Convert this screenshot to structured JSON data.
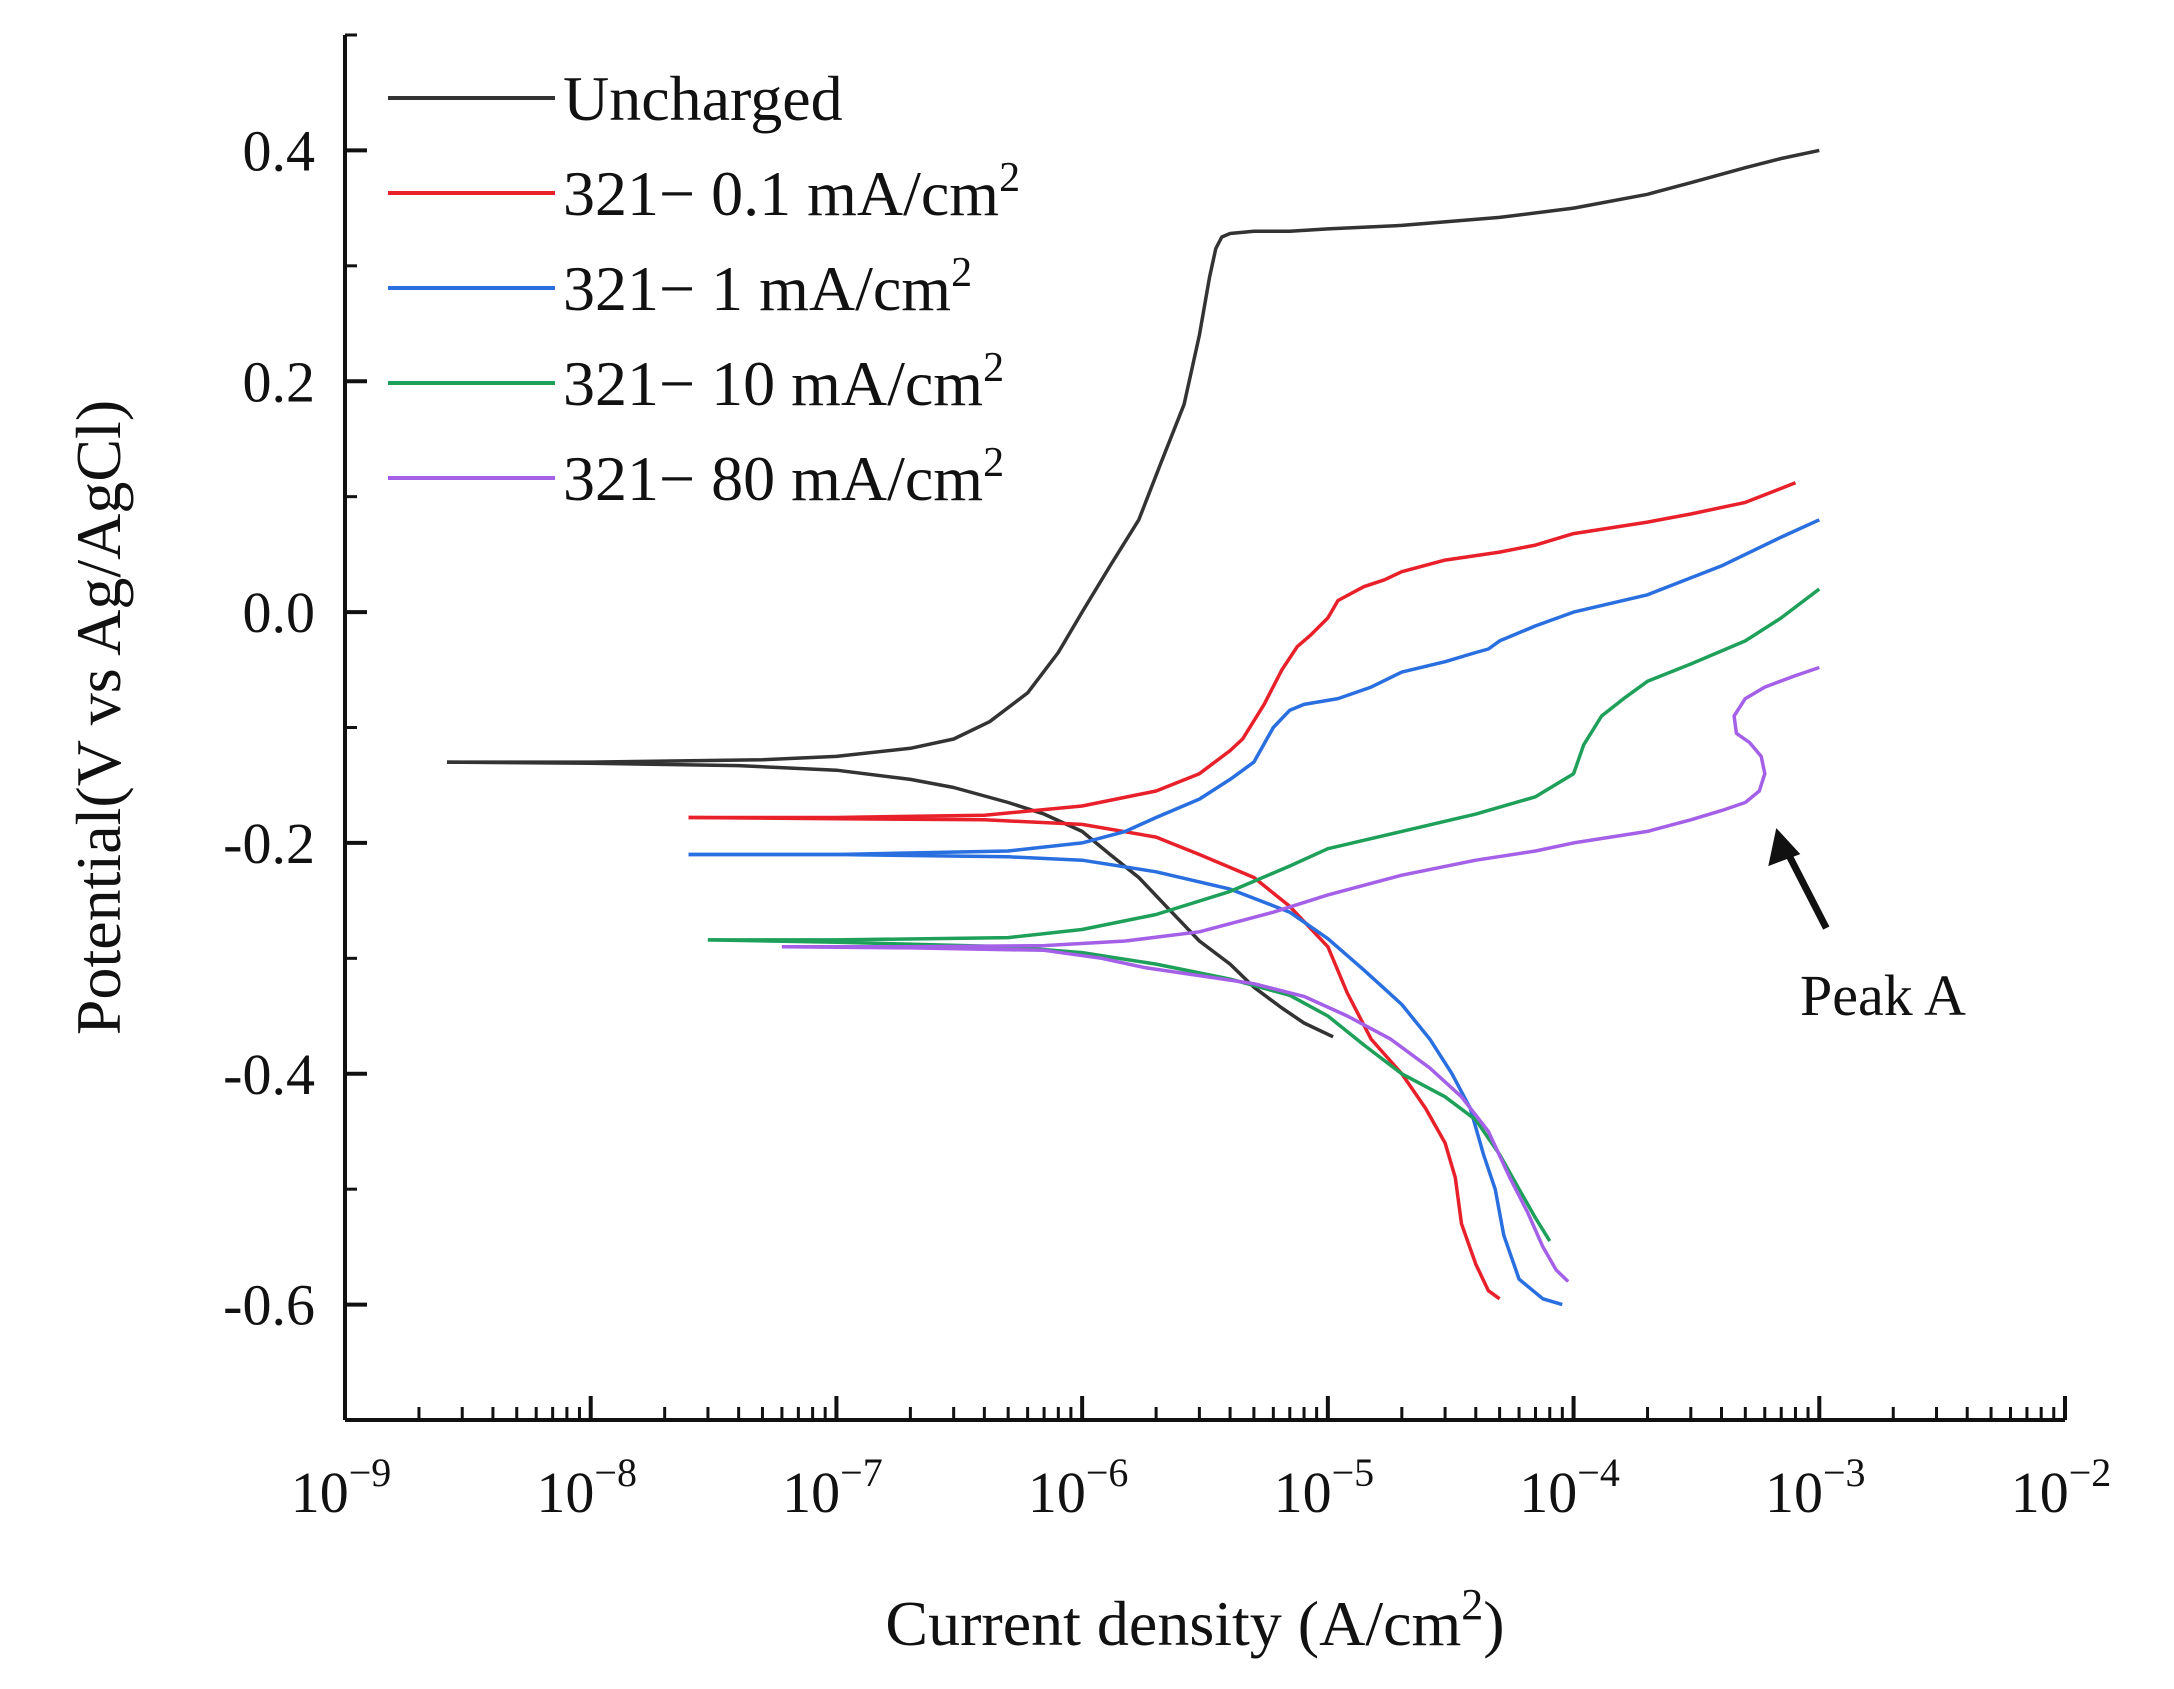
{
  "chart_data": {
    "type": "line",
    "xscale": "log",
    "xlabel": "Current density (A/cm",
    "xlabel_sup": "2",
    "xlabel_suffix": ")",
    "ylabel": "Potential(V vs Ag/AgCl)",
    "xlim": [
      1e-09,
      0.01
    ],
    "ylim": [
      -0.7,
      0.5
    ],
    "y_ticks": [
      "0.4",
      "0.2",
      "0.0",
      "-0.2",
      "-0.4",
      "-0.6"
    ],
    "y_tick_values": [
      0.4,
      0.2,
      0.0,
      -0.2,
      -0.4,
      -0.6
    ],
    "x_ticks": [
      {
        "base": "10",
        "exp": "−9",
        "value": 1e-09
      },
      {
        "base": "10",
        "exp": "−8",
        "value": 1e-08
      },
      {
        "base": "10",
        "exp": "−7",
        "value": 1e-07
      },
      {
        "base": "10",
        "exp": "−6",
        "value": 1e-06
      },
      {
        "base": "10",
        "exp": "−5",
        "value": 1e-05
      },
      {
        "base": "10",
        "exp": "−4",
        "value": 0.0001
      },
      {
        "base": "10",
        "exp": "−3",
        "value": 0.001
      },
      {
        "base": "10",
        "exp": "−2",
        "value": 0.01
      }
    ],
    "legend": "top-left",
    "series": [
      {
        "name": "Uncharged",
        "label_main": "Uncharged",
        "label_sup": "",
        "color": "#333333",
        "x": [
          2.6e-09,
          1e-08,
          5e-08,
          1e-07,
          2e-07,
          3e-07,
          4.2e-07,
          6e-07,
          8e-07,
          1e-06,
          1.3e-06,
          1.7e-06,
          2.1e-06,
          2.6e-06,
          3e-06,
          3.3e-06,
          3.5e-06,
          3.7e-06,
          4e-06,
          5e-06,
          7e-06,
          1e-05,
          2e-05,
          5e-05,
          0.0001,
          0.0002,
          0.0003,
          0.0005,
          0.0007,
          0.001
        ],
        "y": [
          -0.13,
          -0.13,
          -0.128,
          -0.125,
          -0.118,
          -0.11,
          -0.095,
          -0.07,
          -0.035,
          0.0,
          0.04,
          0.08,
          0.13,
          0.18,
          0.24,
          0.29,
          0.315,
          0.325,
          0.328,
          0.33,
          0.33,
          0.332,
          0.335,
          0.342,
          0.35,
          0.362,
          0.372,
          0.385,
          0.393,
          0.4
        ],
        "cx": [
          2.6e-09,
          1e-08,
          4e-08,
          1e-07,
          2e-07,
          3e-07,
          5e-07,
          7e-07,
          1e-06,
          1.3e-06,
          1.7e-06,
          2.2e-06,
          3e-06,
          4e-06,
          5e-06,
          6.5e-06,
          8e-06,
          1.05e-05
        ],
        "cy": [
          -0.13,
          -0.131,
          -0.133,
          -0.137,
          -0.145,
          -0.152,
          -0.165,
          -0.175,
          -0.19,
          -0.21,
          -0.23,
          -0.255,
          -0.285,
          -0.305,
          -0.325,
          -0.343,
          -0.356,
          -0.368
        ]
      },
      {
        "name": "321− 0.1 mA/cm²",
        "label_main": "321− 0.1 mA/cm",
        "label_sup": "2",
        "color": "#e8202a",
        "x": [
          2.5e-08,
          1e-07,
          4e-07,
          1e-06,
          2e-06,
          3e-06,
          4e-06,
          4.5e-06,
          5.5e-06,
          6.5e-06,
          7.5e-06,
          8.5e-06,
          1e-05,
          1.1e-05,
          1.4e-05,
          1.7e-05,
          2e-05,
          3e-05,
          5e-05,
          7e-05,
          0.0001,
          0.0002,
          0.0003,
          0.0005,
          0.0008
        ],
        "y": [
          -0.178,
          -0.178,
          -0.176,
          -0.168,
          -0.155,
          -0.14,
          -0.12,
          -0.11,
          -0.08,
          -0.05,
          -0.03,
          -0.02,
          -0.005,
          0.01,
          0.022,
          0.028,
          0.035,
          0.045,
          0.052,
          0.058,
          0.068,
          0.078,
          0.085,
          0.095,
          0.112
        ],
        "cx": [
          2.5e-08,
          1e-07,
          4e-07,
          1e-06,
          2e-06,
          3e-06,
          5e-06,
          7e-06,
          1e-05,
          1.2e-05,
          1.5e-05,
          2e-05,
          2.5e-05,
          3e-05,
          3.3e-05,
          3.5e-05,
          4e-05,
          4.5e-05,
          5e-05
        ],
        "cy": [
          -0.178,
          -0.179,
          -0.18,
          -0.184,
          -0.195,
          -0.21,
          -0.23,
          -0.255,
          -0.29,
          -0.33,
          -0.37,
          -0.4,
          -0.43,
          -0.46,
          -0.49,
          -0.53,
          -0.565,
          -0.588,
          -0.595
        ]
      },
      {
        "name": "321− 1 mA/cm²",
        "label_main": "321− 1 mA/cm",
        "label_sup": "2",
        "color": "#2a6fdf",
        "x": [
          2.5e-08,
          1e-07,
          5e-07,
          1e-06,
          1.5e-06,
          2e-06,
          3e-06,
          4e-06,
          5e-06,
          6e-06,
          7e-06,
          8e-06,
          1.1e-05,
          1.5e-05,
          2e-05,
          3e-05,
          4e-05,
          4.5e-05,
          5e-05,
          7e-05,
          0.0001,
          0.0002,
          0.0004,
          0.0007,
          0.001
        ],
        "y": [
          -0.21,
          -0.21,
          -0.207,
          -0.2,
          -0.19,
          -0.178,
          -0.162,
          -0.145,
          -0.13,
          -0.1,
          -0.085,
          -0.08,
          -0.075,
          -0.065,
          -0.052,
          -0.043,
          -0.035,
          -0.032,
          -0.025,
          -0.012,
          0.0,
          0.015,
          0.04,
          0.065,
          0.08
        ],
        "cx": [
          2.5e-08,
          1e-07,
          5e-07,
          1e-06,
          2e-06,
          4e-06,
          7e-06,
          1e-05,
          1.4e-05,
          2e-05,
          2.6e-05,
          3.2e-05,
          3.8e-05,
          4.3e-05,
          4.8e-05,
          5.2e-05,
          6e-05,
          7.5e-05,
          9e-05
        ],
        "cy": [
          -0.21,
          -0.21,
          -0.212,
          -0.215,
          -0.225,
          -0.24,
          -0.26,
          -0.283,
          -0.31,
          -0.34,
          -0.37,
          -0.4,
          -0.43,
          -0.47,
          -0.5,
          -0.54,
          -0.578,
          -0.595,
          -0.6
        ]
      },
      {
        "name": "321− 10 mA/cm²",
        "label_main": "321− 10 mA/cm",
        "label_sup": "2",
        "color": "#1ea05a",
        "x": [
          3e-08,
          1e-07,
          5e-07,
          1e-06,
          2e-06,
          4e-06,
          7e-06,
          1e-05,
          2e-05,
          4e-05,
          7e-05,
          0.0001,
          0.00011,
          0.00013,
          0.00016,
          0.0002,
          0.0003,
          0.0005,
          0.0007,
          0.001
        ],
        "y": [
          -0.284,
          -0.284,
          -0.282,
          -0.275,
          -0.262,
          -0.242,
          -0.22,
          -0.205,
          -0.19,
          -0.175,
          -0.16,
          -0.14,
          -0.115,
          -0.09,
          -0.075,
          -0.06,
          -0.045,
          -0.025,
          -0.005,
          0.02
        ],
        "cx": [
          3e-08,
          1e-07,
          5e-07,
          1e-06,
          2e-06,
          4e-06,
          7e-06,
          1e-05,
          1.4e-05,
          2e-05,
          3e-05,
          4e-05,
          5e-05,
          6e-05,
          7e-05,
          8e-05
        ],
        "cy": [
          -0.284,
          -0.286,
          -0.29,
          -0.295,
          -0.305,
          -0.318,
          -0.332,
          -0.35,
          -0.375,
          -0.4,
          -0.42,
          -0.44,
          -0.47,
          -0.5,
          -0.525,
          -0.545
        ]
      },
      {
        "name": "321− 80 mA/cm²",
        "label_main": "321− 80 mA/cm",
        "label_sup": "2",
        "color": "#a560e8",
        "x": [
          6e-08,
          2e-07,
          7e-07,
          1.5e-06,
          3e-06,
          6e-06,
          1e-05,
          2e-05,
          4e-05,
          7e-05,
          0.0001,
          0.0002,
          0.0003,
          0.0004,
          0.0005,
          0.00057,
          0.0006,
          0.00058,
          0.00052,
          0.00046,
          0.00045,
          0.0005,
          0.0006,
          0.0008,
          0.001
        ],
        "y": [
          -0.29,
          -0.29,
          -0.289,
          -0.285,
          -0.277,
          -0.26,
          -0.245,
          -0.228,
          -0.215,
          -0.207,
          -0.2,
          -0.19,
          -0.18,
          -0.172,
          -0.165,
          -0.155,
          -0.14,
          -0.125,
          -0.113,
          -0.105,
          -0.09,
          -0.075,
          -0.065,
          -0.055,
          -0.048
        ],
        "cx": [
          6e-08,
          2e-07,
          7e-07,
          1.2e-06,
          1.8e-06,
          3e-06,
          5e-06,
          8e-06,
          1.2e-05,
          1.8e-05,
          2.6e-05,
          3.5e-05,
          4.5e-05,
          5.5e-05,
          6.5e-05,
          7.5e-05,
          8.5e-05,
          9.5e-05
        ],
        "cy": [
          -0.29,
          -0.291,
          -0.293,
          -0.3,
          -0.308,
          -0.315,
          -0.322,
          -0.333,
          -0.35,
          -0.37,
          -0.395,
          -0.42,
          -0.45,
          -0.49,
          -0.52,
          -0.55,
          -0.57,
          -0.58
        ]
      }
    ],
    "annotations": [
      {
        "text": "Peak A",
        "target_x": 0.00062,
        "target_y": -0.175
      }
    ]
  }
}
